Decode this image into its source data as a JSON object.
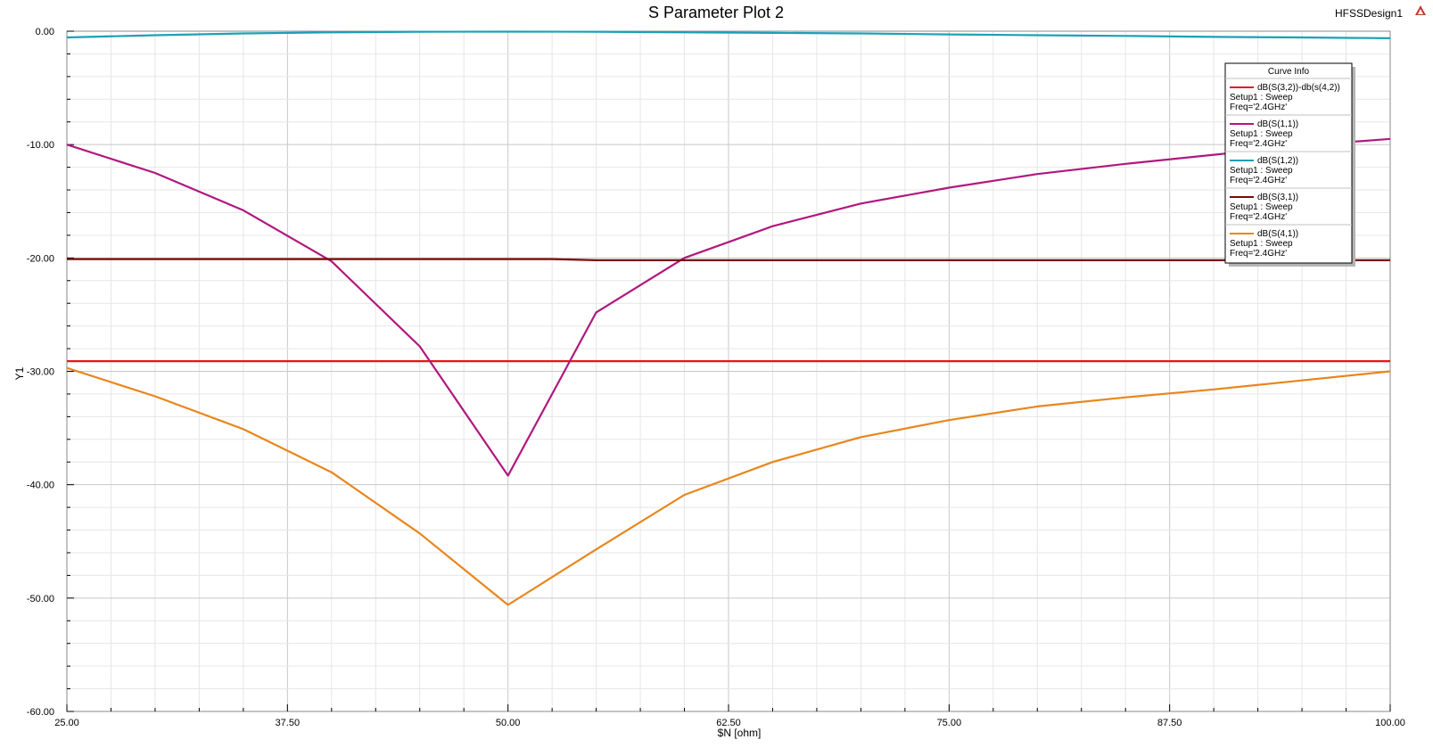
{
  "header": {
    "design_name": "HFSSDesign1"
  },
  "chart_data": {
    "type": "line",
    "title": "S Parameter Plot 2",
    "xlabel": "$N [ohm]",
    "ylabel": "Y1",
    "xlim": [
      25,
      100
    ],
    "ylim": [
      -60,
      0
    ],
    "x_ticks": [
      25,
      37.5,
      50,
      62.5,
      75,
      87.5,
      100
    ],
    "x_tick_labels": [
      "25.00",
      "37.50",
      "50.00",
      "62.50",
      "75.00",
      "87.50",
      "100.00"
    ],
    "y_ticks": [
      0,
      -10,
      -20,
      -30,
      -40,
      -50,
      -60
    ],
    "y_tick_labels": [
      "0.00",
      "-10.00",
      "-20.00",
      "-30.00",
      "-40.00",
      "-50.00",
      "-60.00"
    ],
    "grid": true,
    "legend_placement": "top-right",
    "legend_title": "Curve Info",
    "series": [
      {
        "name": "dB(S(3,2))-db(s(4,2))",
        "setup": "Setup1 : Sweep",
        "freq": "Freq='2.4GHz'",
        "color": "#e8141c",
        "x": [
          25,
          100
        ],
        "y": [
          -29.1,
          -29.1
        ]
      },
      {
        "name": "dB(S(1,1))",
        "setup": "Setup1 : Sweep",
        "freq": "Freq='2.4GHz'",
        "color": "#b0187e",
        "x": [
          25,
          30,
          35,
          40,
          45,
          50,
          55,
          60,
          65,
          70,
          75,
          80,
          85,
          90,
          95,
          100
        ],
        "y": [
          -10.0,
          -12.5,
          -15.8,
          -20.3,
          -27.8,
          -39.2,
          -24.8,
          -20.0,
          -17.2,
          -15.2,
          -13.8,
          -12.6,
          -11.7,
          -10.9,
          -10.1,
          -9.5
        ]
      },
      {
        "name": "dB(S(1,2))",
        "setup": "Setup1 : Sweep",
        "freq": "Freq='2.4GHz'",
        "color": "#1ca0b4",
        "x": [
          25,
          30,
          35,
          40,
          45,
          50,
          55,
          60,
          65,
          70,
          75,
          80,
          85,
          90,
          95,
          100
        ],
        "y": [
          -0.55,
          -0.35,
          -0.2,
          -0.1,
          -0.05,
          -0.04,
          -0.05,
          -0.1,
          -0.15,
          -0.2,
          -0.28,
          -0.35,
          -0.42,
          -0.5,
          -0.55,
          -0.62
        ]
      },
      {
        "name": "dB(S(3,1))",
        "setup": "Setup1 : Sweep",
        "freq": "Freq='2.4GHz'",
        "color": "#7a0a0a",
        "x": [
          25,
          40,
          52.5,
          55,
          100
        ],
        "y": [
          -20.1,
          -20.1,
          -20.1,
          -20.2,
          -20.2
        ]
      },
      {
        "name": "dB(S(4,1))",
        "setup": "Setup1 : Sweep",
        "freq": "Freq='2.4GHz'",
        "color": "#e8861c",
        "x": [
          25,
          30,
          35,
          40,
          45,
          50,
          55,
          60,
          65,
          70,
          75,
          80,
          85,
          90,
          95,
          100
        ],
        "y": [
          -29.7,
          -32.2,
          -35.1,
          -38.9,
          -44.3,
          -50.6,
          -45.7,
          -40.9,
          -38.0,
          -35.8,
          -34.3,
          -33.1,
          -32.3,
          -31.6,
          -30.8,
          -30.0
        ]
      }
    ]
  }
}
